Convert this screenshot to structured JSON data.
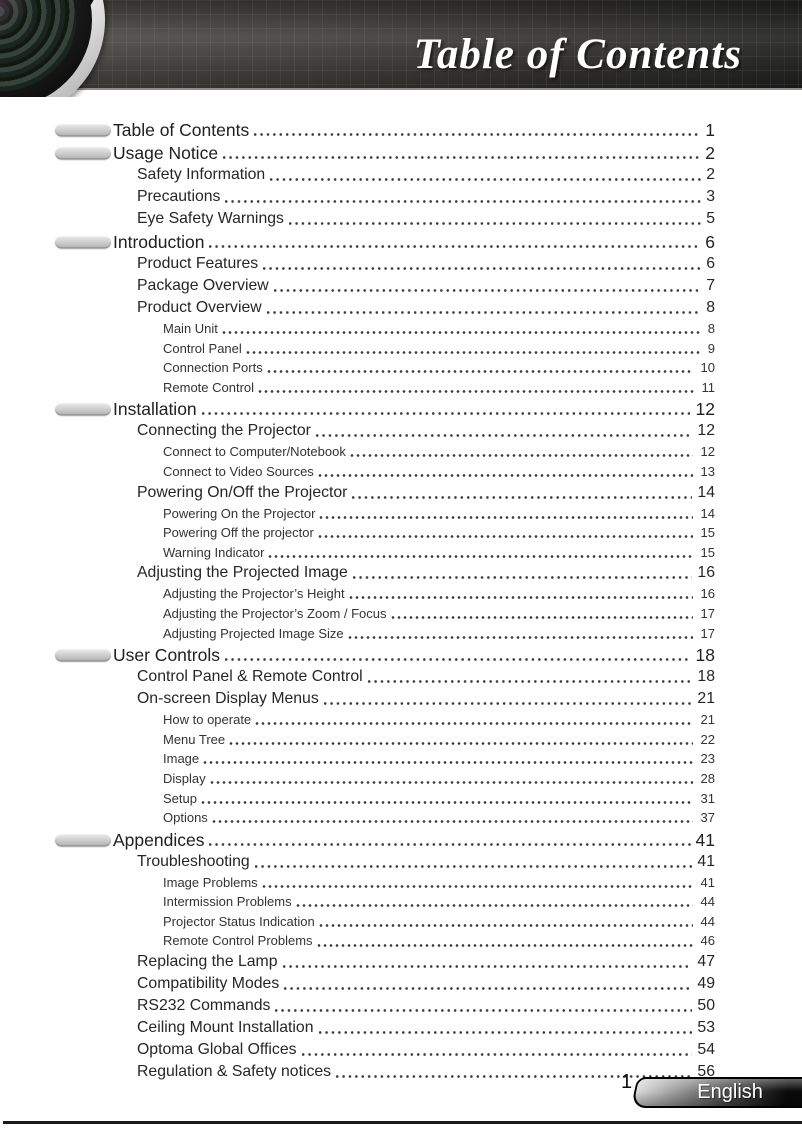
{
  "header": {
    "title": "Table of Contents",
    "decoration": "projector-lens-photo"
  },
  "toc": {
    "entries": [
      {
        "level": 1,
        "label": "Table of Contents",
        "page": "1"
      },
      {
        "level": 1,
        "label": "Usage Notice",
        "page": "2"
      },
      {
        "level": 2,
        "label": "Safety Information",
        "page": "2"
      },
      {
        "level": 2,
        "label": "Precautions",
        "page": "3"
      },
      {
        "level": 2,
        "label": "Eye Safety Warnings",
        "page": "5"
      },
      {
        "level": 1,
        "label": "Introduction",
        "page": "6"
      },
      {
        "level": 2,
        "label": "Product Features",
        "page": "6"
      },
      {
        "level": 2,
        "label": "Package Overview",
        "page": "7"
      },
      {
        "level": 2,
        "label": "Product Overview",
        "page": "8"
      },
      {
        "level": 3,
        "label": "Main Unit",
        "page": "8"
      },
      {
        "level": 3,
        "label": "Control Panel",
        "page": "9"
      },
      {
        "level": 3,
        "label": "Connection Ports",
        "page": "10"
      },
      {
        "level": 3,
        "label": "Remote Control",
        "page": "11"
      },
      {
        "level": 1,
        "label": "Installation",
        "page": "12"
      },
      {
        "level": 2,
        "label": "Connecting the Projector",
        "page": "12"
      },
      {
        "level": 3,
        "label": "Connect to Computer/Notebook",
        "page": "12"
      },
      {
        "level": 3,
        "label": "Connect to Video Sources",
        "page": "13"
      },
      {
        "level": 2,
        "label": "Powering On/Off the Projector",
        "page": "14"
      },
      {
        "level": 3,
        "label": "Powering On the Projector",
        "page": "14"
      },
      {
        "level": 3,
        "label": "Powering Off the projector",
        "page": "15"
      },
      {
        "level": 3,
        "label": "Warning Indicator",
        "page": "15"
      },
      {
        "level": 2,
        "label": "Adjusting the Projected Image",
        "page": "16"
      },
      {
        "level": 3,
        "label": "Adjusting the Projector’s Height",
        "page": "16"
      },
      {
        "level": 3,
        "label": "Adjusting the Projector’s Zoom / Focus",
        "page": "17"
      },
      {
        "level": 3,
        "label": "Adjusting Projected Image Size",
        "page": "17"
      },
      {
        "level": 1,
        "label": "User Controls",
        "page": "18"
      },
      {
        "level": 2,
        "label": "Control Panel & Remote Control",
        "page": "18"
      },
      {
        "level": 2,
        "label": "On-screen Display Menus",
        "page": "21"
      },
      {
        "level": 3,
        "label": "How to operate",
        "page": "21"
      },
      {
        "level": 3,
        "label": "Menu Tree",
        "page": "22"
      },
      {
        "level": 3,
        "label": "Image",
        "page": "23"
      },
      {
        "level": 3,
        "label": "Display",
        "page": "28"
      },
      {
        "level": 3,
        "label": "Setup",
        "page": "31"
      },
      {
        "level": 3,
        "label": "Options",
        "page": "37"
      },
      {
        "level": 1,
        "label": "Appendices",
        "page": "41"
      },
      {
        "level": 2,
        "label": "Troubleshooting",
        "page": "41"
      },
      {
        "level": 3,
        "label": "Image Problems",
        "page": "41"
      },
      {
        "level": 3,
        "label": "Intermission Problems",
        "page": "44"
      },
      {
        "level": 3,
        "label": "Projector Status Indication",
        "page": "44"
      },
      {
        "level": 3,
        "label": "Remote Control Problems",
        "page": "46"
      },
      {
        "level": 2,
        "label": "Replacing the Lamp",
        "page": "47"
      },
      {
        "level": 2,
        "label": "Compatibility Modes",
        "page": "49"
      },
      {
        "level": 2,
        "label": "RS232 Commands",
        "page": "50"
      },
      {
        "level": 2,
        "label": "Ceiling Mount Installation",
        "page": "53"
      },
      {
        "level": 2,
        "label": "Optoma Global Offices",
        "page": "54"
      },
      {
        "level": 2,
        "label": "Regulation & Safety notices",
        "page": "56"
      }
    ]
  },
  "footer": {
    "page_number": "1",
    "language_label": "English"
  },
  "colors": {
    "header_background": "#3c3a38",
    "header_title_text": "#ffffff",
    "body_text": "#262626",
    "section_bullet": "#c9c9c9",
    "badge_dark": "#0a0a0a",
    "badge_text": "#ffffff"
  }
}
